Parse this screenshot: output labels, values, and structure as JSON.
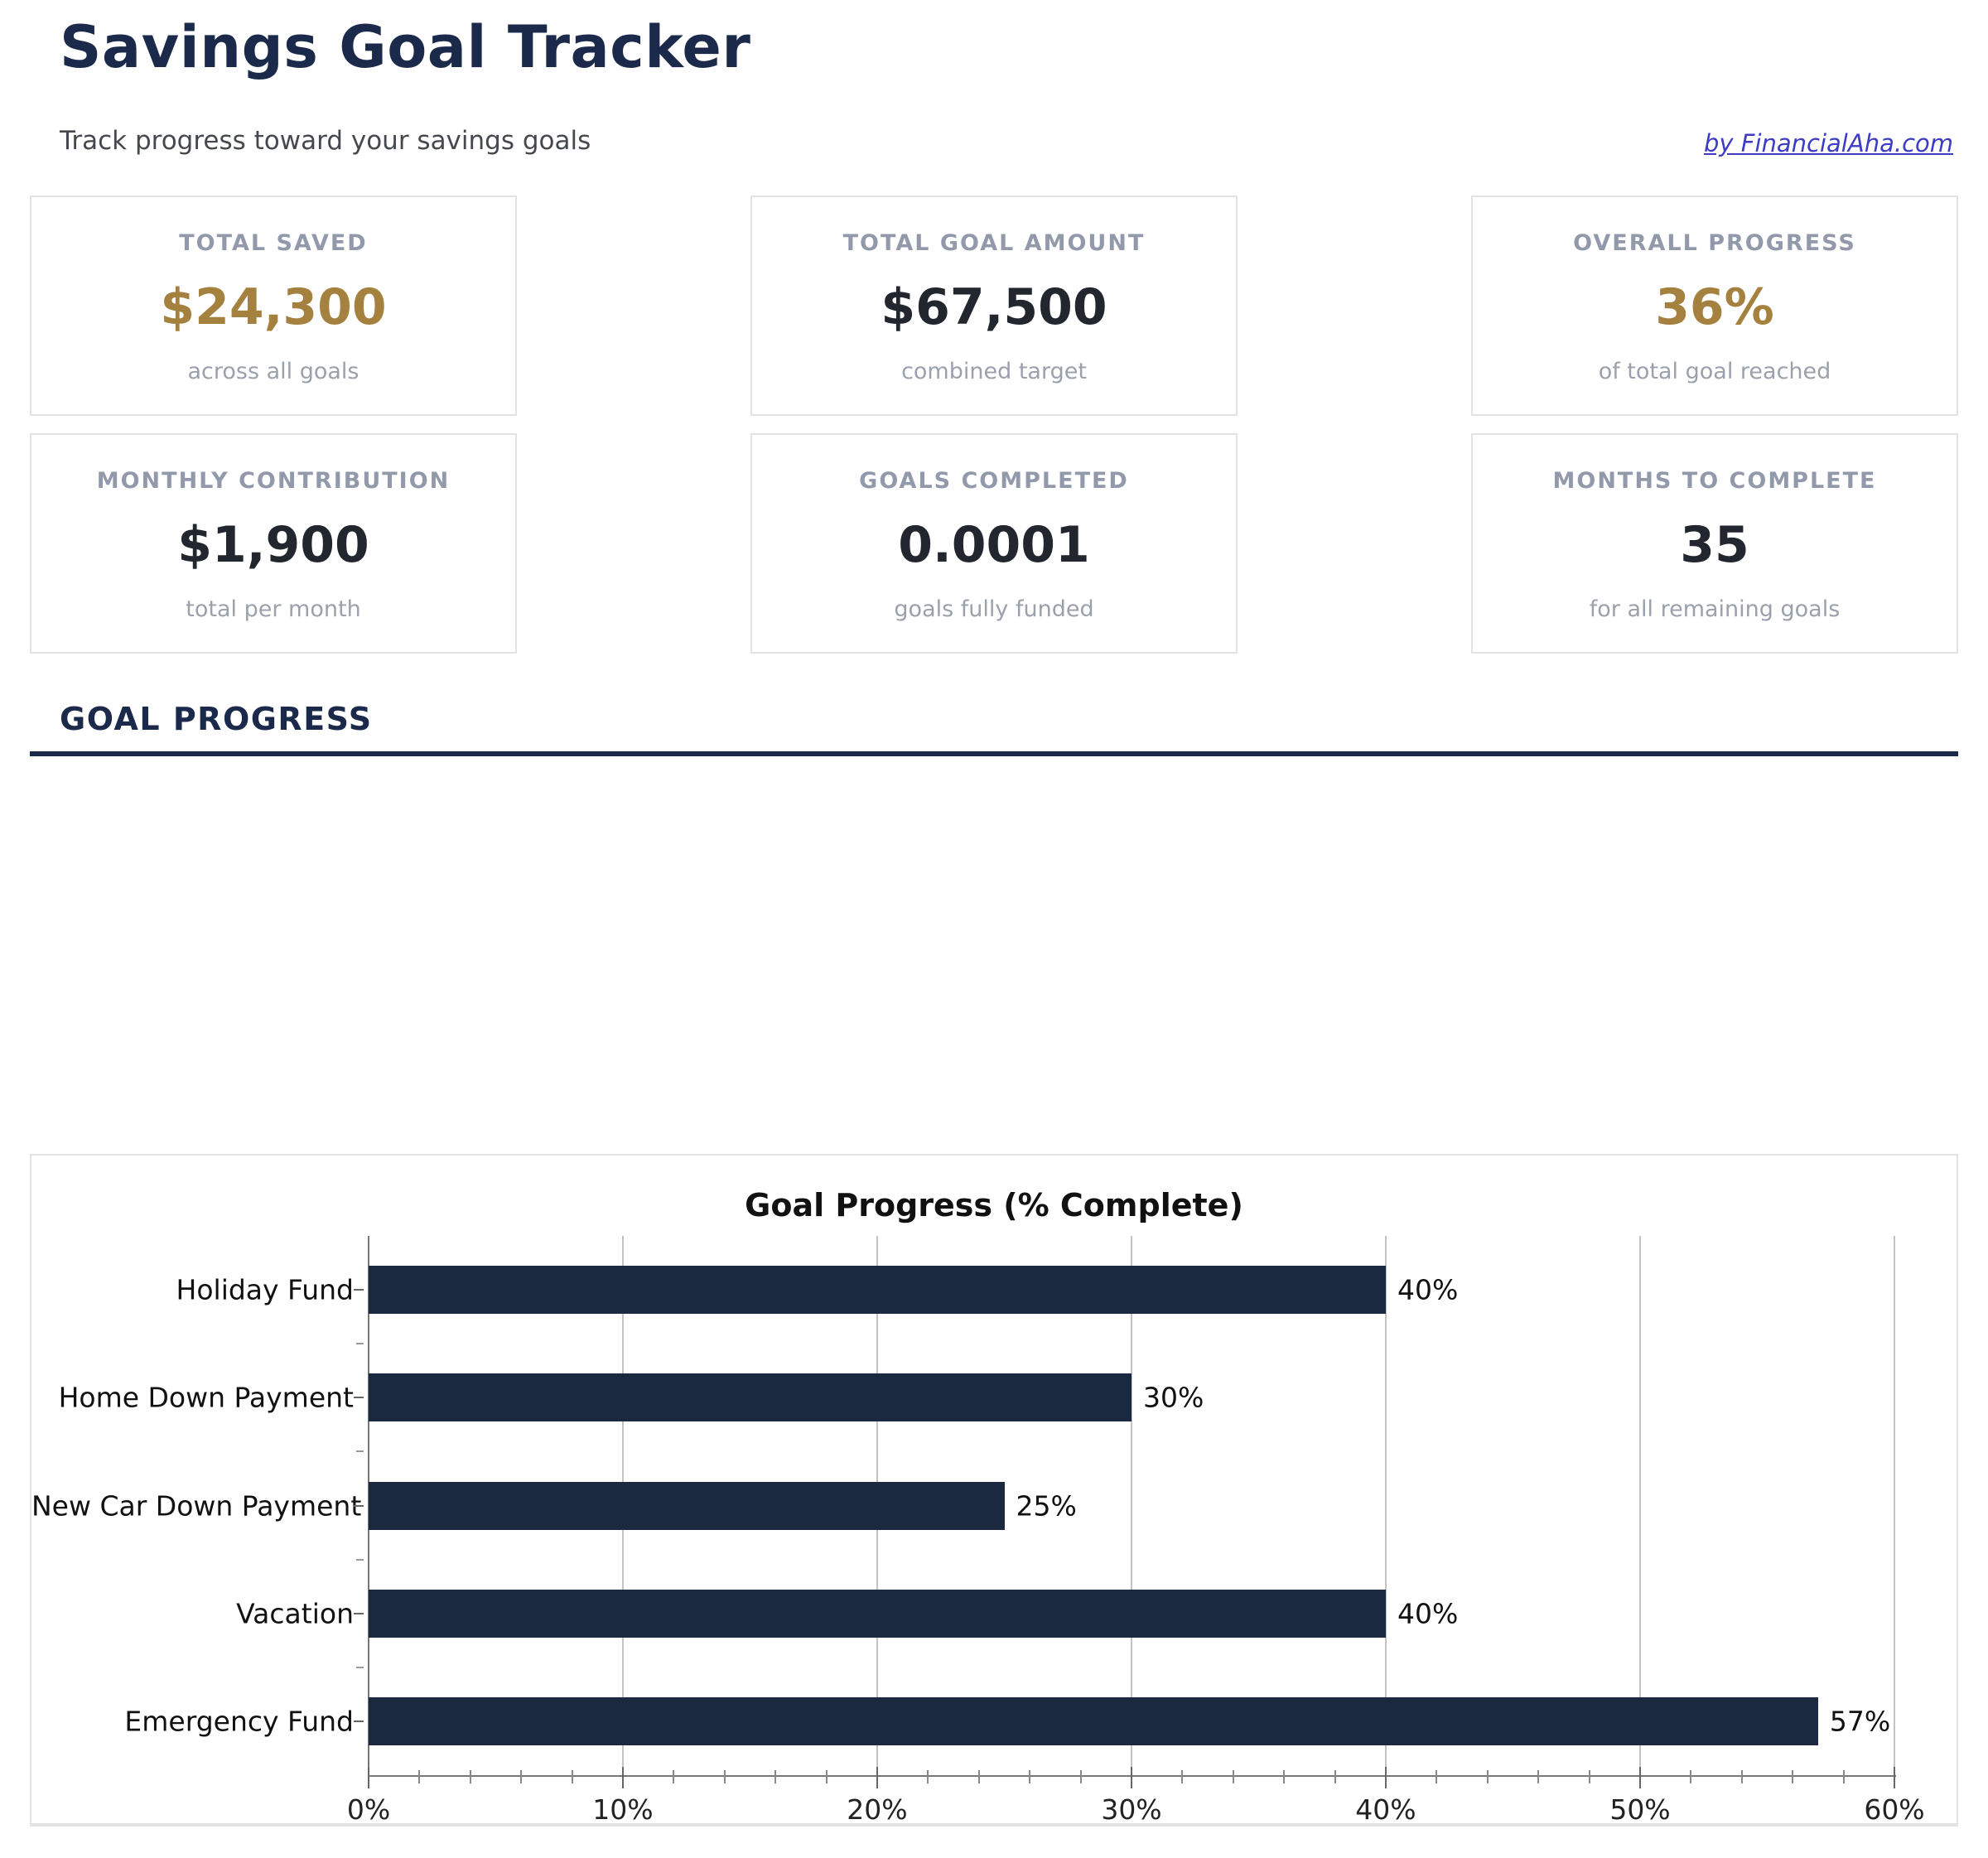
{
  "page": {
    "title": "Savings Goal Tracker",
    "subtitle": "Track progress toward your savings goals",
    "attribution": "by FinancialAha.com"
  },
  "stats": [
    {
      "label": "TOTAL SAVED",
      "value": "$24,300",
      "caption": "across all goals",
      "accent": true
    },
    {
      "label": "TOTAL GOAL AMOUNT",
      "value": "$67,500",
      "caption": "combined target",
      "accent": false
    },
    {
      "label": "OVERALL PROGRESS",
      "value": "36%",
      "caption": "of total goal reached",
      "accent": true
    },
    {
      "label": "MONTHLY CONTRIBUTION",
      "value": "$1,900",
      "caption": "total per month",
      "accent": false
    },
    {
      "label": "GOALS COMPLETED",
      "value": "0.0001",
      "caption": "goals fully funded",
      "accent": false
    },
    {
      "label": "MONTHS TO COMPLETE",
      "value": "35",
      "caption": "for all remaining goals",
      "accent": false
    }
  ],
  "section": {
    "heading": "GOAL PROGRESS"
  },
  "chart_data": {
    "type": "bar",
    "orientation": "horizontal",
    "title": "Goal Progress (% Complete)",
    "categories": [
      "Holiday Fund",
      "Home Down Payment",
      "New Car Down Payment",
      "Vacation",
      "Emergency Fund"
    ],
    "values": [
      40,
      30,
      25,
      40,
      57
    ],
    "value_labels": [
      "40%",
      "30%",
      "25%",
      "40%",
      "57%"
    ],
    "xlabel": "",
    "ylabel": "",
    "xlim": [
      0,
      60
    ],
    "x_major_ticks": [
      0,
      10,
      20,
      30,
      40,
      50,
      60
    ],
    "x_tick_labels": [
      "0%",
      "10%",
      "20%",
      "30%",
      "40%",
      "50%",
      "60%"
    ],
    "x_minor_tick_step": 2,
    "grid": true,
    "legend": false
  },
  "colors": {
    "navy": "#1b2a4a",
    "bar": "#1b2940",
    "gold": "#a5813f",
    "value-dark": "#21262f",
    "label-gray": "#9199ab",
    "caption-gray": "#9aa1ac",
    "subtitle-gray": "#45494f",
    "link-blue": "#3c3cc4",
    "card-border": "#e2e2e2",
    "grid-gray": "#c3c3c3",
    "axis-gray": "#777777"
  }
}
